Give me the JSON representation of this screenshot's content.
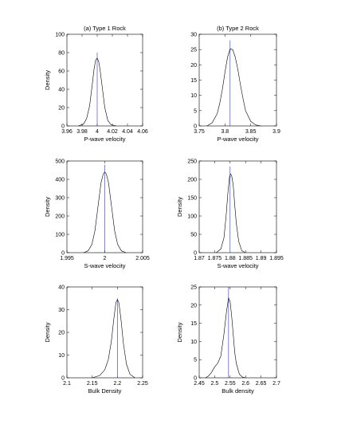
{
  "chart_data": [
    {
      "type": "line",
      "title": "(a) Type 1 Rock",
      "xlabel": "P-wave velocity",
      "ylabel": "Density",
      "xlim": [
        3.96,
        4.06
      ],
      "ylim": [
        0,
        100
      ],
      "xticks": [
        3.96,
        3.98,
        4.0,
        4.02,
        4.04,
        4.06
      ],
      "xtick_labels": [
        "3.96",
        "3.98",
        "4",
        "4.02",
        "4.04",
        "4.06"
      ],
      "yticks": [
        0,
        20,
        40,
        60,
        80,
        100
      ],
      "ytick_labels": [
        "0",
        "20",
        "40",
        "60",
        "80",
        "100"
      ],
      "vline_x": 4.0,
      "vline_top": 80,
      "series": [
        {
          "x": [
            3.975,
            3.982,
            3.986,
            3.99,
            3.993,
            3.996,
            3.998,
            4.0,
            4.002,
            4.004,
            4.007,
            4.01,
            4.014,
            4.018,
            4.025
          ],
          "y": [
            0,
            2,
            8,
            22,
            42,
            63,
            72,
            74,
            70,
            60,
            40,
            20,
            6,
            1.5,
            0
          ]
        }
      ]
    },
    {
      "type": "line",
      "title": "(b) Type 2 Rock",
      "xlabel": "P-wave velocity",
      "ylabel": "",
      "xlim": [
        3.75,
        3.9
      ],
      "ylim": [
        0,
        30
      ],
      "xticks": [
        3.75,
        3.8,
        3.85,
        3.9
      ],
      "xtick_labels": [
        "3.75",
        "3.8",
        "3.85",
        "3.9"
      ],
      "yticks": [
        0,
        5,
        10,
        15,
        20,
        25,
        30
      ],
      "ytick_labels": [
        "0",
        "5",
        "10",
        "15",
        "20",
        "25",
        "30"
      ],
      "vline_x": 3.81,
      "vline_top": 28,
      "series": [
        {
          "x": [
            3.765,
            3.775,
            3.785,
            3.79,
            3.795,
            3.8,
            3.805,
            3.81,
            3.815,
            3.82,
            3.825,
            3.83,
            3.835,
            3.84,
            3.85,
            3.86,
            3.87
          ],
          "y": [
            0,
            1,
            4,
            7.5,
            12,
            17.5,
            22.5,
            25.2,
            25,
            22.5,
            18.5,
            13.5,
            9,
            5,
            1.5,
            0.3,
            0
          ]
        }
      ]
    },
    {
      "type": "line",
      "title": "",
      "xlabel": "S-wave velocity",
      "ylabel": "Density",
      "xlim": [
        1.995,
        2.005
      ],
      "ylim": [
        0,
        500
      ],
      "xticks": [
        1.995,
        2.0,
        2.005
      ],
      "xtick_labels": [
        "1.995",
        "2",
        "2.005"
      ],
      "yticks": [
        0,
        100,
        200,
        300,
        400,
        500
      ],
      "ytick_labels": [
        "0",
        "100",
        "200",
        "300",
        "400",
        "500"
      ],
      "vline_x": 2.0,
      "vline_top": 480,
      "series": [
        {
          "x": [
            1.9972,
            1.9978,
            1.9983,
            1.9987,
            1.9991,
            1.9995,
            1.9998,
            2.0,
            2.0002,
            2.0005,
            2.0009,
            2.0013,
            2.0017,
            2.0022,
            2.0028
          ],
          "y": [
            0,
            10,
            45,
            120,
            250,
            380,
            430,
            440,
            430,
            380,
            250,
            120,
            45,
            10,
            0
          ]
        }
      ]
    },
    {
      "type": "line",
      "title": "",
      "xlabel": "S-wave velocity",
      "ylabel": "Density",
      "xlim": [
        1.87,
        1.895
      ],
      "ylim": [
        0,
        250
      ],
      "xticks": [
        1.87,
        1.875,
        1.88,
        1.885,
        1.89,
        1.895
      ],
      "xtick_labels": [
        "1.87",
        "1.875",
        "1.88",
        "1.885",
        "1.89",
        "1.895"
      ],
      "yticks": [
        0,
        50,
        100,
        150,
        200,
        250
      ],
      "ytick_labels": [
        "0",
        "50",
        "100",
        "150",
        "200",
        "250"
      ],
      "vline_x": 1.88,
      "vline_top": 235,
      "series": [
        {
          "x": [
            1.8755,
            1.877,
            1.878,
            1.8787,
            1.8793,
            1.8798,
            1.8801,
            1.8805,
            1.881,
            1.8815,
            1.882,
            1.8828,
            1.8838,
            1.885
          ],
          "y": [
            0,
            10,
            40,
            100,
            165,
            205,
            215,
            210,
            185,
            130,
            80,
            30,
            5,
            0
          ]
        }
      ]
    },
    {
      "type": "line",
      "title": "",
      "xlabel": "Bulk Density",
      "ylabel": "Density",
      "xlim": [
        2.1,
        2.25
      ],
      "ylim": [
        0,
        40
      ],
      "xticks": [
        2.1,
        2.15,
        2.2,
        2.25
      ],
      "xtick_labels": [
        "2.1",
        "2.15",
        "2.2",
        "2.25"
      ],
      "yticks": [
        0,
        10,
        20,
        30,
        40
      ],
      "ytick_labels": [
        "0",
        "10",
        "20",
        "30",
        "40"
      ],
      "vline_x": 2.2,
      "vline_top": 35,
      "series": [
        {
          "x": [
            2.15,
            2.165,
            2.175,
            2.182,
            2.188,
            2.193,
            2.197,
            2.2,
            2.203,
            2.207,
            2.212,
            2.218,
            2.225,
            2.235
          ],
          "y": [
            0,
            1,
            3.5,
            8,
            16,
            26,
            33,
            34.5,
            33,
            26,
            15,
            6,
            1.5,
            0
          ]
        }
      ]
    },
    {
      "type": "line",
      "title": "",
      "xlabel": "Bulk density",
      "ylabel": "Density",
      "xlim": [
        2.45,
        2.7
      ],
      "ylim": [
        0,
        25
      ],
      "xticks": [
        2.45,
        2.5,
        2.55,
        2.6,
        2.65,
        2.7
      ],
      "xtick_labels": [
        "2.45",
        "2.5",
        "2.55",
        "2.6",
        "2.65",
        "2.7"
      ],
      "yticks": [
        0,
        5,
        10,
        15,
        20,
        25
      ],
      "ytick_labels": [
        "0",
        "5",
        "10",
        "15",
        "20",
        "25"
      ],
      "vline_x": 2.545,
      "vline_top": 25,
      "series": [
        {
          "x": [
            2.47,
            2.48,
            2.49,
            2.5,
            2.51,
            2.52,
            2.53,
            2.538,
            2.545,
            2.55,
            2.555,
            2.56,
            2.565,
            2.57,
            2.58,
            2.59,
            2.6
          ],
          "y": [
            0,
            0.5,
            1.5,
            3,
            4,
            6,
            12,
            18,
            22,
            21,
            17,
            12,
            7,
            4,
            1,
            0.2,
            0
          ]
        }
      ]
    }
  ]
}
